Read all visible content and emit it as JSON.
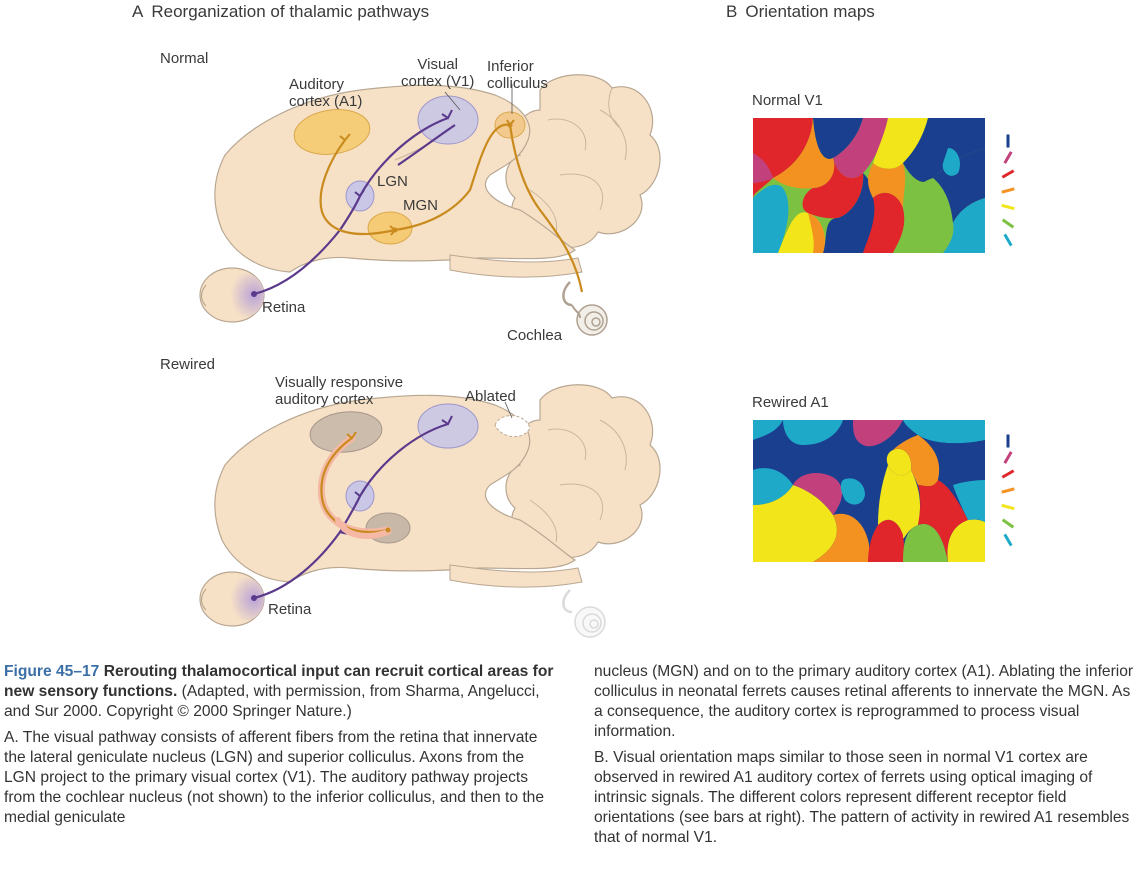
{
  "panel_a": {
    "letter": "A",
    "title": "Reorganization of thalamic pathways",
    "normal": {
      "heading": "Normal",
      "labels": {
        "auditory_cortex": "Auditory\ncortex (A1)",
        "visual_cortex": "Visual\ncortex (V1)",
        "inferior_colliculus": "Inferior\ncolliculus",
        "lgn": "LGN",
        "mgn": "MGN",
        "retina": "Retina",
        "cochlea": "Cochlea"
      }
    },
    "rewired": {
      "heading": "Rewired",
      "labels": {
        "visually_responsive": "Visually responsive\nauditory cortex",
        "ablated": "Ablated",
        "retina": "Retina"
      }
    }
  },
  "panel_b": {
    "letter": "B",
    "title": "Orientation maps",
    "normal_label": "Normal V1",
    "rewired_label": "Rewired A1",
    "orientation_bar_colors": [
      "#1a3f8f",
      "#c2417d",
      "#e0262b",
      "#f39221",
      "#f2e51a",
      "#7cc142",
      "#1fa9c9"
    ]
  },
  "colors": {
    "visual_pathway": "#5b3a8c",
    "auditory_pathway": "#c98a1e",
    "brain_fill": "#f7e1c6",
    "visual_area": "#c9c6e6",
    "auditory_area": "#f5c96b",
    "rewired_area": "#c7b8a8",
    "caption_accent": "#3b6fa5"
  },
  "caption": {
    "figure_number": "Figure 45–17",
    "title": "Rerouting thalamocortical input can recruit cortical areas for new sensory functions.",
    "source": "(Adapted, with permission, from Sharma, Angelucci, and Sur 2000. Copyright © 2000 Springer Nature.)",
    "para_a_label": "A.",
    "para_a": "The visual pathway consists of afferent fibers from the retina that innervate the lateral geniculate nucleus (LGN) and superior colliculus. Axons from the LGN project to the primary visual cortex (V1). The auditory pathway projects from the cochlear nucleus (not shown) to the inferior colliculus, and then to the medial geniculate nucleus (MGN) and on to the primary auditory cortex (A1). Ablating the inferior colliculus in neonatal ferrets causes retinal afferents to innervate the MGN. As a consequence, the auditory cortex is reprogrammed to process visual information.",
    "para_b_label": "B.",
    "para_b": "Visual orientation maps similar to those seen in normal V1 cortex are observed in rewired A1 auditory cortex of ferrets using optical imaging of intrinsic signals. The different colors represent different receptor field orientations (see bars at right). The pattern of activity in rewired A1 resembles that of normal V1."
  }
}
